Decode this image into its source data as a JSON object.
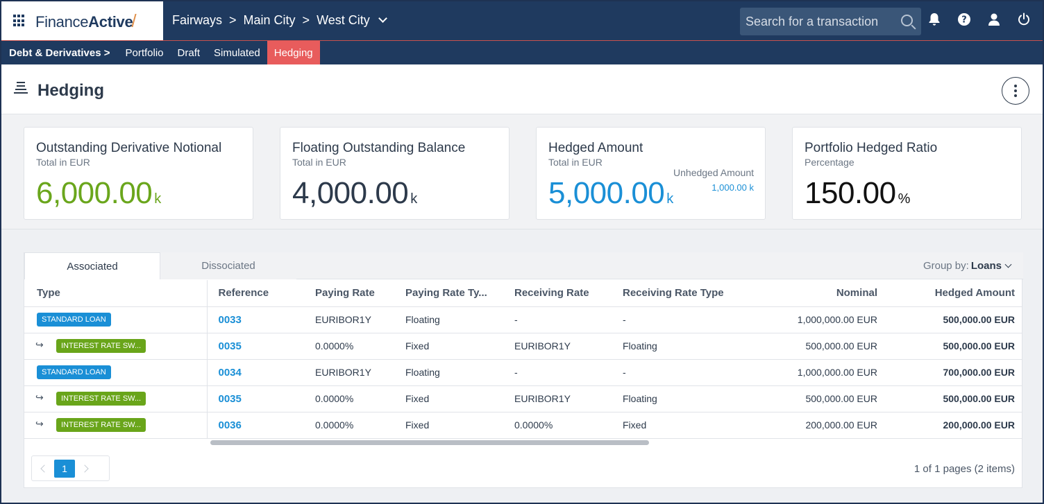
{
  "app": {
    "logo_prefix": "Finance",
    "logo_bold": "Active",
    "logo_slash": "/"
  },
  "breadcrumb": {
    "items": [
      "Fairways",
      "Main City",
      "West City"
    ],
    "separator": ">"
  },
  "search": {
    "placeholder": "Search for a transaction"
  },
  "top_icons": [
    "bell-icon",
    "help-icon",
    "user-icon",
    "power-icon"
  ],
  "subnav": {
    "root": "Debt & Derivatives",
    "root_sep": ">",
    "tabs": [
      "Portfolio",
      "Draft",
      "Simulated",
      "Hedging"
    ],
    "active": "Hedging"
  },
  "page": {
    "title": "Hedging"
  },
  "kpis": [
    {
      "title": "Outstanding Derivative Notional",
      "sub": "Total in EUR",
      "value": "6,000.00",
      "unit": "k",
      "color": "#6aa61c"
    },
    {
      "title": "Floating Outstanding Balance",
      "sub": "Total in EUR",
      "value": "4,000.00",
      "unit": "k",
      "color": "#2d3a4b"
    },
    {
      "title": "Hedged Amount",
      "sub": "Total in EUR",
      "value": "5,000.00",
      "unit": "k",
      "color": "#1a8fd6",
      "unhedged_label": "Unhedged Amount",
      "unhedged_value": "1,000.00 k"
    },
    {
      "title": "Portfolio Hedged Ratio",
      "sub": "Percentage",
      "value": "150.00",
      "unit": "%",
      "color": "#111111"
    }
  ],
  "tabs": [
    "Associated",
    "Dissociated"
  ],
  "group_by": {
    "label": "Group by:",
    "value": "Loans"
  },
  "table": {
    "columns": [
      "Type",
      "Reference",
      "Paying Rate",
      "Paying Rate Ty...",
      "Receiving Rate",
      "Receiving Rate Type",
      "Nominal",
      "Hedged Amount"
    ],
    "rows": [
      {
        "type": "STANDARD LOAN",
        "child": false,
        "ref": "0033",
        "paying_rate": "EURIBOR1Y",
        "paying_type": "Floating",
        "receiving_rate": "-",
        "receiving_type": "-",
        "nominal": "1,000,000.00 EUR",
        "hedged": "500,000.00 EUR"
      },
      {
        "type": "INTEREST RATE SW...",
        "child": true,
        "ref": "0035",
        "paying_rate": "0.0000%",
        "paying_type": "Fixed",
        "receiving_rate": "EURIBOR1Y",
        "receiving_type": "Floating",
        "nominal": "500,000.00 EUR",
        "hedged": "500,000.00 EUR"
      },
      {
        "type": "STANDARD LOAN",
        "child": false,
        "ref": "0034",
        "paying_rate": "EURIBOR1Y",
        "paying_type": "Floating",
        "receiving_rate": "-",
        "receiving_type": "-",
        "nominal": "1,000,000.00 EUR",
        "hedged": "700,000.00 EUR"
      },
      {
        "type": "INTEREST RATE SW...",
        "child": true,
        "ref": "0035",
        "paying_rate": "0.0000%",
        "paying_type": "Fixed",
        "receiving_rate": "EURIBOR1Y",
        "receiving_type": "Floating",
        "nominal": "500,000.00 EUR",
        "hedged": "500,000.00 EUR"
      },
      {
        "type": "INTEREST RATE SW...",
        "child": true,
        "ref": "0036",
        "paying_rate": "0.0000%",
        "paying_type": "Fixed",
        "receiving_rate": "0.0000%",
        "receiving_type": "Fixed",
        "nominal": "200,000.00 EUR",
        "hedged": "200,000.00 EUR"
      }
    ]
  },
  "pagination": {
    "current": "1",
    "info": "1 of 1 pages (2 items)"
  }
}
